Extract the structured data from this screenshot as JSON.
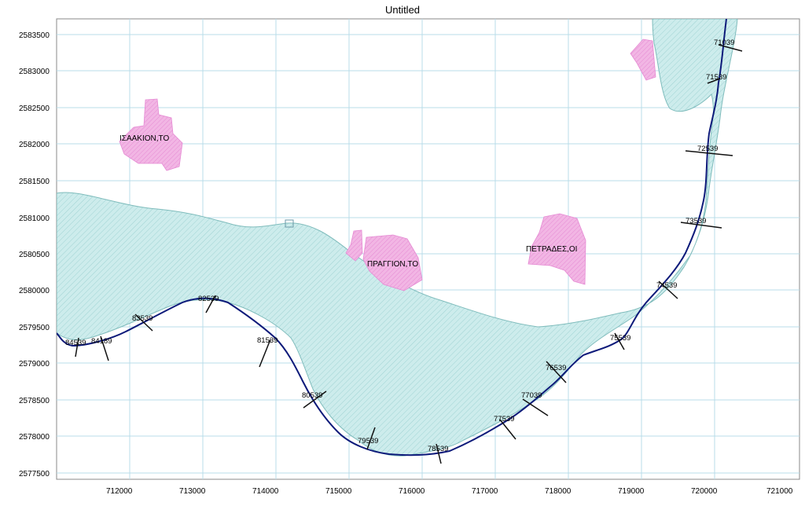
{
  "map": {
    "title": "Untitled",
    "x_ticks": [
      "712000",
      "713000",
      "714000",
      "715000",
      "716000",
      "717000",
      "718000",
      "719000",
      "720000",
      "721000"
    ],
    "y_ticks": [
      "2583500",
      "2583000",
      "2582500",
      "2582000",
      "2581500",
      "2581000",
      "2580500",
      "2580000",
      "2579500",
      "2579000",
      "2578500",
      "2578000",
      "2577500"
    ],
    "places": [
      {
        "name": "ΙΣΑΑΚΙΟΝ,ΤΟ"
      },
      {
        "name": "ΠΡΑΓΓΙΟΝ,ΤΟ"
      },
      {
        "name": "ΠΕΤΡΑΔΕΣ,ΟΙ"
      }
    ],
    "chainage": [
      "71039",
      "71539",
      "72539",
      "73539",
      "74539",
      "75539",
      "76539",
      "77039",
      "77539",
      "78539",
      "79539",
      "80539",
      "81539",
      "82539",
      "83539",
      "84189",
      "84539"
    ],
    "colors": {
      "river_fill": "#c8eaea",
      "river_outline": "#7fbcbc",
      "settlement_fill": "#f2a8e0",
      "road_line": "#0d1a7a",
      "grid": "#b8dcea",
      "cross_section": "#111111"
    }
  }
}
